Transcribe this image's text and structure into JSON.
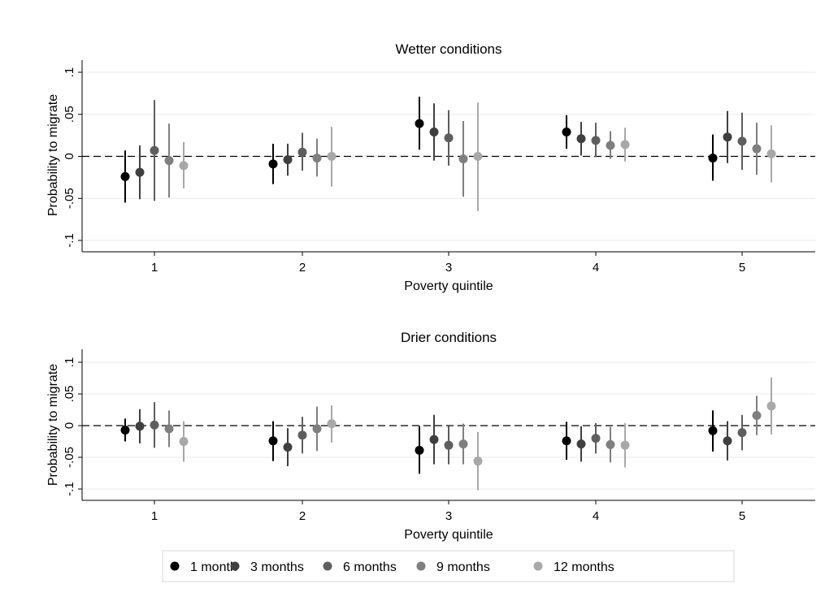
{
  "legend": {
    "placement": "bottom",
    "entries": [
      {
        "label": "1 month",
        "color": "#000000"
      },
      {
        "label": "3 months",
        "color": "#3f3f3f"
      },
      {
        "label": "6 months",
        "color": "#5e5e5e"
      },
      {
        "label": "9 months",
        "color": "#7f7f7f"
      },
      {
        "label": "12 months",
        "color": "#a8a8a8"
      }
    ]
  },
  "chart_data": [
    {
      "type": "scatter",
      "subtype": "coefficient plot with confidence intervals",
      "title": "Wetter conditions",
      "xlabel": "Poverty quintile",
      "ylabel": "Probability to migrate",
      "categories": [
        "1",
        "2",
        "3",
        "4",
        "5"
      ],
      "ylim": [
        -0.1,
        0.1
      ],
      "yticks": [
        -0.1,
        -0.05,
        0,
        0.05,
        0.1
      ],
      "ytick_labels": [
        "-.1",
        "-.05",
        "0",
        ".05",
        ".1"
      ],
      "grid": true,
      "reference_line": 0,
      "series": [
        {
          "name": "1 month",
          "values": [
            -0.024,
            -0.009,
            0.039,
            0.029,
            -0.002
          ],
          "ci_low": [
            -0.055,
            -0.033,
            0.008,
            0.009,
            -0.029
          ],
          "ci_high": [
            0.007,
            0.015,
            0.071,
            0.049,
            0.026
          ]
        },
        {
          "name": "3 months",
          "values": [
            -0.019,
            -0.004,
            0.029,
            0.021,
            0.023
          ],
          "ci_low": [
            -0.051,
            -0.023,
            -0.005,
            0.001,
            -0.008
          ],
          "ci_high": [
            0.013,
            0.015,
            0.063,
            0.041,
            0.054
          ]
        },
        {
          "name": "6 months",
          "values": [
            0.007,
            0.005,
            0.022,
            0.019,
            0.018
          ],
          "ci_low": [
            -0.053,
            -0.017,
            -0.011,
            -0.001,
            -0.016
          ],
          "ci_high": [
            0.067,
            0.028,
            0.055,
            0.04,
            0.052
          ]
        },
        {
          "name": "9 months",
          "values": [
            -0.005,
            -0.002,
            -0.003,
            0.013,
            0.009
          ],
          "ci_low": [
            -0.049,
            -0.024,
            -0.048,
            -0.003,
            -0.022
          ],
          "ci_high": [
            0.039,
            0.021,
            0.042,
            0.03,
            0.04
          ]
        },
        {
          "name": "12 months",
          "values": [
            -0.011,
            0.0,
            0.0,
            0.014,
            0.003
          ],
          "ci_low": [
            -0.038,
            -0.036,
            -0.065,
            -0.006,
            -0.031
          ],
          "ci_high": [
            0.017,
            0.035,
            0.064,
            0.034,
            0.037
          ]
        }
      ]
    },
    {
      "type": "scatter",
      "subtype": "coefficient plot with confidence intervals",
      "title": "Drier conditions",
      "xlabel": "Poverty quintile",
      "ylabel": "Probability to migrate",
      "categories": [
        "1",
        "2",
        "3",
        "4",
        "5"
      ],
      "ylim": [
        -0.1,
        0.1
      ],
      "yticks": [
        -0.1,
        -0.05,
        0,
        0.05,
        0.1
      ],
      "ytick_labels": [
        "-.1",
        "-.05",
        "0",
        ".05",
        ".1"
      ],
      "grid": true,
      "reference_line": 0,
      "series": [
        {
          "name": "1 month",
          "values": [
            -0.007,
            -0.024,
            -0.039,
            -0.024,
            -0.008
          ],
          "ci_low": [
            -0.025,
            -0.056,
            -0.076,
            -0.054,
            -0.041
          ],
          "ci_high": [
            0.011,
            0.007,
            -0.001,
            0.006,
            0.024
          ]
        },
        {
          "name": "3 months",
          "values": [
            -0.001,
            -0.034,
            -0.022,
            -0.029,
            -0.024
          ],
          "ci_low": [
            -0.028,
            -0.064,
            -0.061,
            -0.057,
            -0.055
          ],
          "ci_high": [
            0.026,
            -0.004,
            0.017,
            -0.001,
            0.007
          ]
        },
        {
          "name": "6 months",
          "values": [
            0.001,
            -0.015,
            -0.031,
            -0.02,
            -0.011
          ],
          "ci_low": [
            -0.035,
            -0.044,
            -0.061,
            -0.044,
            -0.039
          ],
          "ci_high": [
            0.037,
            0.014,
            -0.001,
            0.004,
            0.017
          ]
        },
        {
          "name": "9 months",
          "values": [
            -0.005,
            -0.005,
            -0.029,
            -0.03,
            0.016
          ],
          "ci_low": [
            -0.034,
            -0.04,
            -0.061,
            -0.058,
            -0.015
          ],
          "ci_high": [
            0.024,
            0.03,
            0.003,
            -0.002,
            0.047
          ]
        },
        {
          "name": "12 months",
          "values": [
            -0.025,
            0.003,
            -0.056,
            -0.031,
            0.031
          ],
          "ci_low": [
            -0.057,
            -0.027,
            -0.102,
            -0.066,
            -0.014
          ],
          "ci_high": [
            0.007,
            0.032,
            -0.01,
            0.004,
            0.076
          ]
        }
      ]
    }
  ]
}
